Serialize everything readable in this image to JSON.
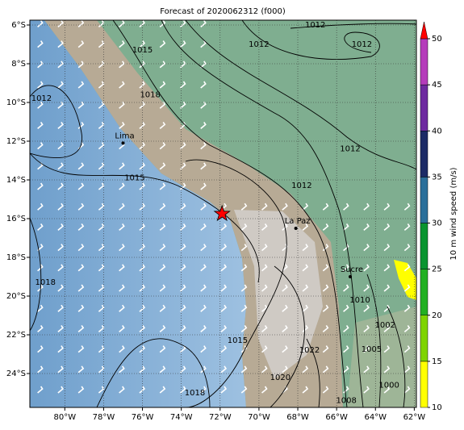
{
  "title": "Forecast of 2020062312 (f000)",
  "lon_ticks": [
    {
      "value": -80,
      "label": "80°W"
    },
    {
      "value": -78,
      "label": "78°W"
    },
    {
      "value": -76,
      "label": "76°W"
    },
    {
      "value": -74,
      "label": "74°W"
    },
    {
      "value": -72,
      "label": "72°W"
    },
    {
      "value": -70,
      "label": "70°W"
    },
    {
      "value": -68,
      "label": "68°W"
    },
    {
      "value": -66,
      "label": "66°W"
    },
    {
      "value": -64,
      "label": "64°W"
    },
    {
      "value": -62,
      "label": "62°W"
    }
  ],
  "lat_ticks": [
    {
      "value": -6,
      "label": "6°S"
    },
    {
      "value": -8,
      "label": "8°S"
    },
    {
      "value": -10,
      "label": "10°S"
    },
    {
      "value": -12,
      "label": "12°S"
    },
    {
      "value": -14,
      "label": "14°S"
    },
    {
      "value": -16,
      "label": "16°S"
    },
    {
      "value": -18,
      "label": "18°S"
    },
    {
      "value": -20,
      "label": "20°S"
    },
    {
      "value": -22,
      "label": "22°S"
    },
    {
      "value": -24,
      "label": "24°S"
    }
  ],
  "colorbar": {
    "label": "10 m wind speed (m/s)",
    "ticks": [
      10,
      15,
      20,
      25,
      30,
      35,
      40,
      45,
      50
    ],
    "colors": [
      "#ffff00",
      "#7fd400",
      "#22b022",
      "#0a9430",
      "#2b6f9a",
      "#1c2b66",
      "#6e2aa0",
      "#b53cbb"
    ],
    "extend_color": "#ff0000"
  },
  "cities": [
    {
      "name": "Lima",
      "lon": -77.0,
      "lat": -12.1
    },
    {
      "name": "La Paz",
      "lon": -68.1,
      "lat": -16.5
    },
    {
      "name": "Sucre",
      "lon": -65.3,
      "lat": -19.0
    }
  ],
  "star": {
    "lon": -71.9,
    "lat": -15.75
  },
  "contour_labels": [
    {
      "value": 1012,
      "lon": -67.1,
      "lat": -6.0
    },
    {
      "value": 1012,
      "lon": -64.7,
      "lat": -7.0
    },
    {
      "value": 1012,
      "lon": -70.0,
      "lat": -7.0
    },
    {
      "value": 1015,
      "lon": -76.0,
      "lat": -7.3
    },
    {
      "value": 1018,
      "lon": -75.6,
      "lat": -9.6
    },
    {
      "value": 1012,
      "lon": -81.2,
      "lat": -9.8
    },
    {
      "value": 1015,
      "lon": -76.4,
      "lat": -13.9
    },
    {
      "value": 1012,
      "lon": -67.8,
      "lat": -14.3
    },
    {
      "value": 1012,
      "lon": -65.3,
      "lat": -12.4
    },
    {
      "value": 1018,
      "lon": -81.0,
      "lat": -19.3
    },
    {
      "value": 1010,
      "lon": -64.8,
      "lat": -20.2
    },
    {
      "value": 1002,
      "lon": -63.5,
      "lat": -21.5
    },
    {
      "value": 1005,
      "lon": -64.2,
      "lat": -22.75
    },
    {
      "value": 1022,
      "lon": -67.4,
      "lat": -22.8
    },
    {
      "value": 1015,
      "lon": -71.1,
      "lat": -22.3
    },
    {
      "value": 1020,
      "lon": -68.9,
      "lat": -24.2
    },
    {
      "value": 1018,
      "lon": -73.3,
      "lat": -25.0
    },
    {
      "value": 1000,
      "lon": -63.3,
      "lat": -24.6
    },
    {
      "value": 1008,
      "lon": -65.5,
      "lat": -25.4
    }
  ]
}
